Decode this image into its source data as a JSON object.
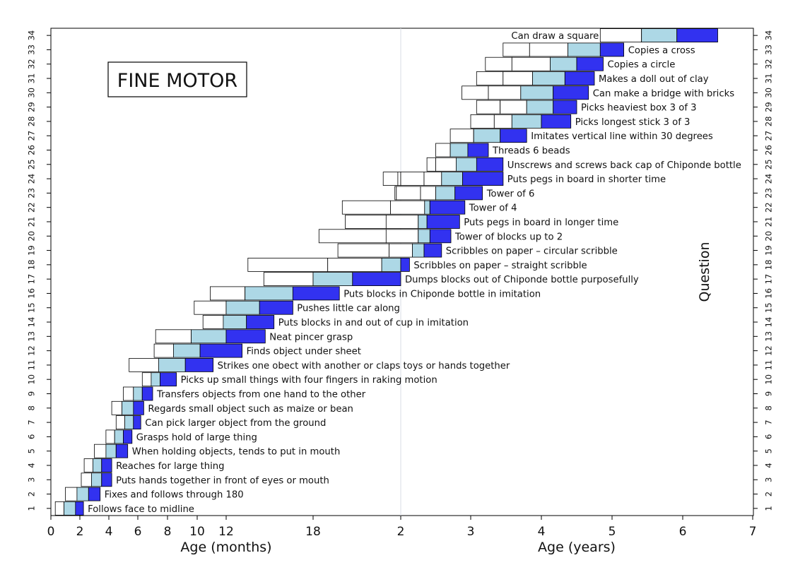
{
  "chart_data": {
    "type": "bar",
    "subtype": "floating-range",
    "title": "FINE MOTOR",
    "xlabel_months": "Age (months)",
    "xlabel_years": "Age (years)",
    "ylabel": "Question",
    "xticks": [
      {
        "label": "0",
        "months": 0
      },
      {
        "label": "2",
        "months": 2
      },
      {
        "label": "4",
        "months": 4
      },
      {
        "label": "6",
        "months": 6
      },
      {
        "label": "8",
        "months": 8
      },
      {
        "label": "10",
        "months": 10
      },
      {
        "label": "12",
        "months": 12
      },
      {
        "label": "18",
        "months": 18
      },
      {
        "label": "2",
        "months": 24
      },
      {
        "label": "3",
        "months": 36
      },
      {
        "label": "4",
        "months": 48
      },
      {
        "label": "5",
        "months": 60
      },
      {
        "label": "6",
        "months": 72
      },
      {
        "label": "7",
        "months": 84
      }
    ],
    "yticks": [
      "1",
      "2",
      "3",
      "4",
      "5",
      "6",
      "7",
      "8",
      "9",
      "10",
      "11",
      "12",
      "13",
      "14",
      "15",
      "16",
      "17",
      "18",
      "19",
      "20",
      "21",
      "22",
      "23",
      "24",
      "25",
      "26",
      "27",
      "28",
      "29",
      "30",
      "31",
      "32",
      "33",
      "34"
    ],
    "ylim": [
      0.5,
      34.5
    ],
    "colors": {
      "white": "#ffffff",
      "light": "#add8e6",
      "dark": "#3232f0"
    },
    "items": [
      {
        "q": 1,
        "label": "Follows face to midline",
        "b": [
          0.3,
          0.9,
          1.7,
          2.25
        ]
      },
      {
        "q": 2,
        "label": "Fixes and follows through 180",
        "b": [
          1.0,
          1.8,
          2.6,
          3.4
        ]
      },
      {
        "q": 3,
        "label": "Puts hands together in front of eyes or mouth",
        "b": [
          2.1,
          2.8,
          3.5,
          4.2
        ]
      },
      {
        "q": 4,
        "label": "Reaches for large thing",
        "b": [
          2.3,
          2.9,
          3.5,
          4.2
        ]
      },
      {
        "q": 5,
        "label": "When holding objects, tends to put in mouth",
        "b": [
          3.0,
          3.8,
          4.5,
          5.3
        ]
      },
      {
        "q": 6,
        "label": "Grasps hold of large thing",
        "b": [
          3.8,
          4.4,
          5.0,
          5.6
        ]
      },
      {
        "q": 7,
        "label": "Can pick larger object from the ground",
        "b": [
          4.5,
          5.1,
          5.7,
          6.2
        ]
      },
      {
        "q": 8,
        "label": "Regards small object such as maize or bean",
        "b": [
          4.2,
          4.9,
          5.7,
          6.4
        ]
      },
      {
        "q": 9,
        "label": "Transfers objects from one hand to the other",
        "b": [
          5.0,
          5.7,
          6.3,
          7.0
        ]
      },
      {
        "q": 10,
        "label": "Picks up small things with four fingers in raking motion",
        "b": [
          6.3,
          6.9,
          7.5,
          8.6
        ]
      },
      {
        "q": 11,
        "label": "Strikes one obect with another or claps toys or hands together",
        "b": [
          5.4,
          7.4,
          9.2,
          11.1
        ]
      },
      {
        "q": 12,
        "label": "Finds object under sheet",
        "b": [
          7.1,
          8.4,
          10.2,
          13.1
        ]
      },
      {
        "q": 13,
        "label": "Neat pincer grasp",
        "b": [
          7.2,
          9.6,
          12.0,
          14.7
        ]
      },
      {
        "q": 14,
        "label": "Puts blocks in and out of cup in imitation",
        "b": [
          10.4,
          11.8,
          13.4,
          15.3
        ]
      },
      {
        "q": 15,
        "label": "Pushes little car along",
        "b": [
          9.8,
          12.0,
          14.3,
          16.6
        ]
      },
      {
        "q": 16,
        "label": "Puts blocks in Chiponde bottle in imitation",
        "b": [
          10.9,
          13.3,
          16.6,
          19.8
        ]
      },
      {
        "q": 17,
        "label": "Dumps blocks out of Chiponde bottle purposefully",
        "b": [
          14.6,
          18.0,
          20.7,
          24.0
        ]
      },
      {
        "q": 18,
        "label": "Scribbles on paper – straight scribble",
        "b": [
          13.5,
          19.0,
          22.7,
          24.0,
          25.5
        ]
      },
      {
        "q": 19,
        "label": "Scribbles on paper – circular scribble",
        "b": [
          19.7,
          23.2,
          26.0,
          28.0,
          31.0
        ]
      },
      {
        "q": 20,
        "label": "Tower of blocks up to 2",
        "b": [
          18.4,
          23.0,
          27.0,
          29.0,
          32.6
        ]
      },
      {
        "q": 21,
        "label": "Puts pegs in board in longer time",
        "b": [
          20.2,
          23.0,
          27.0,
          28.5,
          34.1
        ]
      },
      {
        "q": 22,
        "label": "Tower of 4",
        "b": [
          20.0,
          23.3,
          28.1,
          29.0,
          35.0
        ]
      },
      {
        "q": 23,
        "label": "Tower of 6",
        "b": [
          23.6,
          23.7,
          27.4,
          30.0,
          33.3,
          38.0
        ]
      },
      {
        "q": 24,
        "label": "Puts pegs in board in shorter time",
        "b": [
          22.8,
          23.8,
          24.0,
          28.0,
          31.0,
          34.6,
          41.5
        ]
      },
      {
        "q": 25,
        "label": "Unscrews and screws back cap of Chiponde bottle",
        "b": [
          28.5,
          30.0,
          33.5,
          37.0,
          41.5
        ]
      },
      {
        "q": 26,
        "label": "Threads 6 beads",
        "b": [
          30.0,
          32.5,
          35.5,
          39.0
        ]
      },
      {
        "q": 27,
        "label": "Imitates vertical line within 30 degrees",
        "b": [
          32.5,
          36.5,
          41.0,
          45.5
        ]
      },
      {
        "q": 28,
        "label": "Picks longest stick 3 of 3",
        "b": [
          36.0,
          40.0,
          43.0,
          48.0,
          53.0
        ]
      },
      {
        "q": 29,
        "label": "Picks heaviest box 3 of 3",
        "b": [
          37.0,
          41.0,
          45.5,
          50.0,
          54.0
        ]
      },
      {
        "q": 30,
        "label": "Can make a bridge with bricks",
        "b": [
          34.5,
          39.0,
          44.5,
          50.0,
          56.0
        ]
      },
      {
        "q": 31,
        "label": "Makes a doll out of clay",
        "b": [
          37.0,
          41.5,
          46.5,
          52.0,
          57.0
        ]
      },
      {
        "q": 32,
        "label": "Copies a circle",
        "b": [
          38.5,
          43.0,
          49.5,
          54.0,
          58.5
        ]
      },
      {
        "q": 33,
        "label": "Copies a cross",
        "b": [
          41.5,
          46.0,
          52.5,
          58.0,
          62.0
        ]
      },
      {
        "q": 34,
        "label": "Can draw a square",
        "b": [
          58.0,
          65.0,
          71.0,
          78.0
        ]
      }
    ]
  }
}
